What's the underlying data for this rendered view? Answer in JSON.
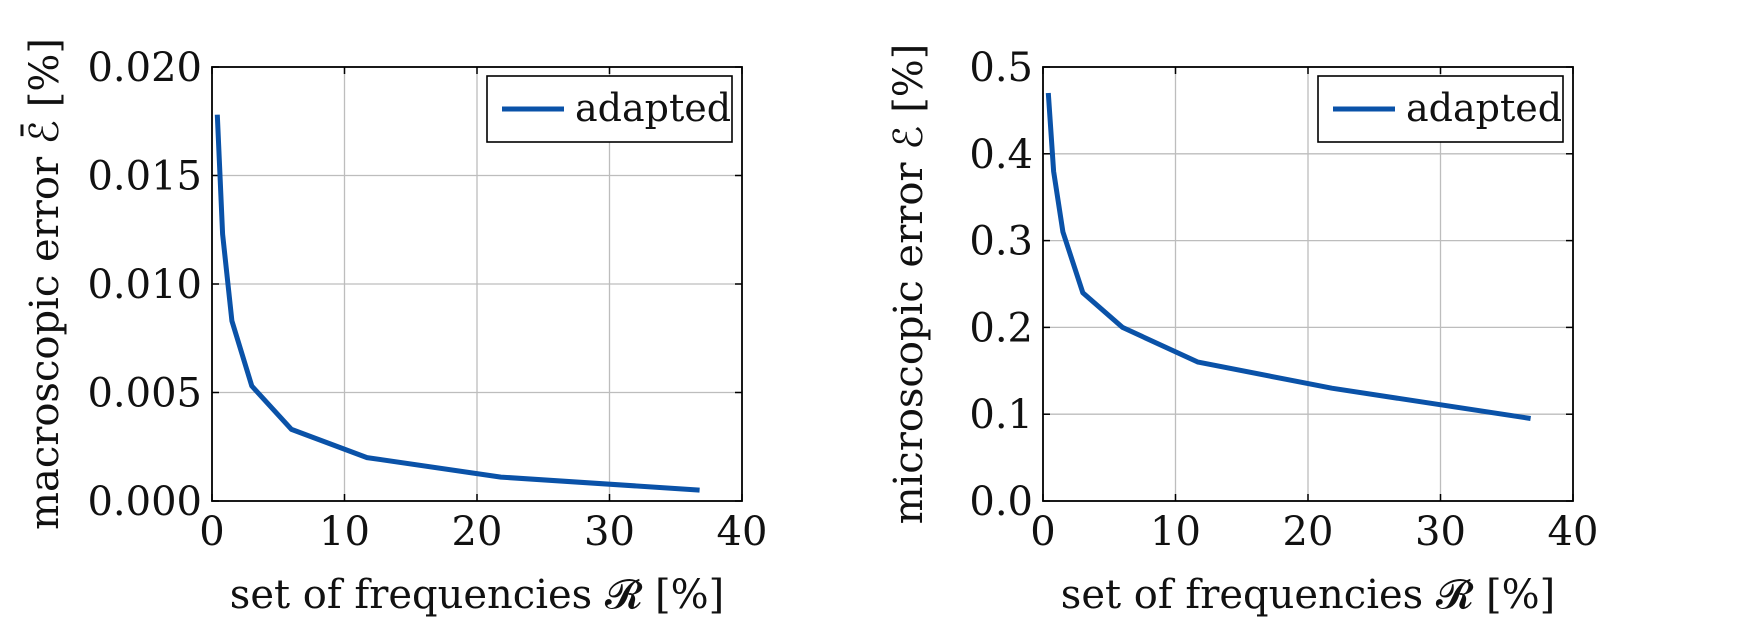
{
  "chart_data": [
    {
      "type": "line",
      "xlabel": "set of frequencies 𝓡 [%]",
      "ylabel": "macroscopic error ℰ̄ [%]",
      "xlim": [
        0,
        40
      ],
      "ylim": [
        0,
        0.02
      ],
      "xticks": [
        0,
        10,
        20,
        30,
        40
      ],
      "xtick_labels": [
        "0",
        "10",
        "20",
        "30",
        "40"
      ],
      "yticks": [
        0,
        0.005,
        0.01,
        0.015,
        0.02
      ],
      "ytick_labels": [
        "0.000",
        "0.005",
        "0.010",
        "0.015",
        "0.020"
      ],
      "grid": true,
      "legend_position": "top-right",
      "series": [
        {
          "name": "adapted",
          "color": "#0a52a8",
          "x": [
            0.4,
            0.8,
            1.5,
            3,
            6,
            11.7,
            21.8,
            36.8
          ],
          "y": [
            0.0178,
            0.0123,
            0.0083,
            0.0053,
            0.0033,
            0.002,
            0.0011,
            0.0005
          ]
        }
      ]
    },
    {
      "type": "line",
      "xlabel": "set of frequencies 𝓡 [%]",
      "ylabel": "microscopic error ℰ [%]",
      "xlim": [
        0,
        40
      ],
      "ylim": [
        0,
        0.5
      ],
      "xticks": [
        0,
        10,
        20,
        30,
        40
      ],
      "xtick_labels": [
        "0",
        "10",
        "20",
        "30",
        "40"
      ],
      "yticks": [
        0,
        0.1,
        0.2,
        0.3,
        0.4,
        0.5
      ],
      "ytick_labels": [
        "0.0",
        "0.1",
        "0.2",
        "0.3",
        "0.4",
        "0.5"
      ],
      "grid": true,
      "legend_position": "top-right",
      "series": [
        {
          "name": "adapted",
          "color": "#0a52a8",
          "x": [
            0.4,
            0.8,
            1.5,
            3,
            6,
            11.7,
            21.8,
            36.8
          ],
          "y": [
            0.47,
            0.38,
            0.31,
            0.24,
            0.2,
            0.16,
            0.13,
            0.095
          ]
        }
      ]
    }
  ]
}
